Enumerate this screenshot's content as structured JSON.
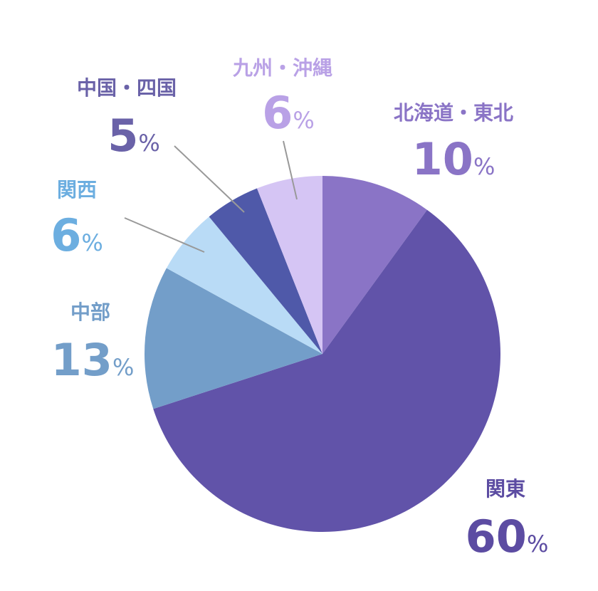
{
  "chart_data": {
    "type": "pie",
    "categories": [
      "北海道・東北",
      "関東",
      "中部",
      "関西",
      "中国・四国",
      "九州・沖縄"
    ],
    "values": [
      10,
      60,
      13,
      6,
      5,
      6
    ],
    "unit": "%",
    "colors": [
      "#8a74c6",
      "#6153a9",
      "#739ec9",
      "#b9dbf6",
      "#4f59a9",
      "#d5c5f4"
    ],
    "label_colors": [
      "#8a74c6",
      "#5c4ca2",
      "#739ec9",
      "#6caee0",
      "#6a62a8",
      "#b9a1e6"
    ]
  }
}
